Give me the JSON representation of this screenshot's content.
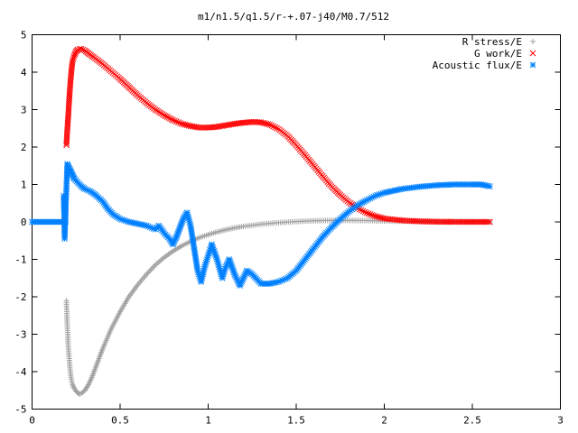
{
  "chart_data": {
    "type": "scatter",
    "title": "m1/n1.5/q1.5/r-+.07-j40/M0.7/512",
    "xlabel": "",
    "ylabel": "",
    "xlim": [
      0,
      3
    ],
    "ylim": [
      -5,
      5
    ],
    "xticks": [
      "0",
      "0.5",
      "1",
      "1.5",
      "2",
      "2.5",
      "3"
    ],
    "yticks": [
      "-5",
      "-4",
      "-3",
      "-2",
      "-1",
      "0",
      "1",
      "2",
      "3",
      "4",
      "5"
    ],
    "grid": false,
    "legend_position": "top-right",
    "series": [
      {
        "name": "R stress/E",
        "marker": "plus",
        "color": "#a0a0a0",
        "points": [
          [
            0.195,
            -2.1
          ],
          [
            0.198,
            -2.5
          ],
          [
            0.2,
            -2.8
          ],
          [
            0.203,
            -3.0
          ],
          [
            0.205,
            -3.3
          ],
          [
            0.21,
            -3.6
          ],
          [
            0.215,
            -3.9
          ],
          [
            0.22,
            -4.1
          ],
          [
            0.225,
            -4.25
          ],
          [
            0.23,
            -4.35
          ],
          [
            0.24,
            -4.45
          ],
          [
            0.25,
            -4.52
          ],
          [
            0.26,
            -4.57
          ],
          [
            0.27,
            -4.6
          ],
          [
            0.28,
            -4.58
          ],
          [
            0.3,
            -4.5
          ],
          [
            0.32,
            -4.35
          ],
          [
            0.34,
            -4.15
          ],
          [
            0.36,
            -3.9
          ],
          [
            0.38,
            -3.65
          ],
          [
            0.4,
            -3.4
          ],
          [
            0.45,
            -2.85
          ],
          [
            0.5,
            -2.4
          ],
          [
            0.55,
            -2.0
          ],
          [
            0.6,
            -1.68
          ],
          [
            0.65,
            -1.4
          ],
          [
            0.7,
            -1.15
          ],
          [
            0.75,
            -0.95
          ],
          [
            0.8,
            -0.78
          ],
          [
            0.85,
            -0.64
          ],
          [
            0.9,
            -0.52
          ],
          [
            0.95,
            -0.42
          ],
          [
            1.0,
            -0.34
          ],
          [
            1.05,
            -0.27
          ],
          [
            1.1,
            -0.21
          ],
          [
            1.15,
            -0.16
          ],
          [
            1.2,
            -0.12
          ],
          [
            1.3,
            -0.06
          ],
          [
            1.4,
            -0.02
          ],
          [
            1.5,
            0.01
          ],
          [
            1.6,
            0.03
          ],
          [
            1.7,
            0.04
          ],
          [
            1.8,
            0.04
          ],
          [
            1.9,
            0.035
          ],
          [
            2.0,
            0.025
          ],
          [
            2.1,
            0.018
          ],
          [
            2.2,
            0.012
          ],
          [
            2.3,
            0.008
          ],
          [
            2.4,
            0.005
          ],
          [
            2.5,
            0.003
          ],
          [
            2.6,
            0.002
          ]
        ]
      },
      {
        "name": "G work/E",
        "marker": "cross",
        "color": "#ff0000",
        "points": [
          [
            0.195,
            2.05
          ],
          [
            0.2,
            2.45
          ],
          [
            0.205,
            2.8
          ],
          [
            0.21,
            3.2
          ],
          [
            0.215,
            3.55
          ],
          [
            0.22,
            3.85
          ],
          [
            0.225,
            4.1
          ],
          [
            0.23,
            4.3
          ],
          [
            0.24,
            4.45
          ],
          [
            0.25,
            4.55
          ],
          [
            0.26,
            4.6
          ],
          [
            0.27,
            4.62
          ],
          [
            0.28,
            4.62
          ],
          [
            0.3,
            4.58
          ],
          [
            0.32,
            4.5
          ],
          [
            0.35,
            4.4
          ],
          [
            0.4,
            4.22
          ],
          [
            0.45,
            4.02
          ],
          [
            0.5,
            3.82
          ],
          [
            0.55,
            3.6
          ],
          [
            0.6,
            3.38
          ],
          [
            0.65,
            3.18
          ],
          [
            0.7,
            3.0
          ],
          [
            0.75,
            2.85
          ],
          [
            0.8,
            2.72
          ],
          [
            0.85,
            2.62
          ],
          [
            0.9,
            2.56
          ],
          [
            0.95,
            2.52
          ],
          [
            1.0,
            2.52
          ],
          [
            1.05,
            2.54
          ],
          [
            1.1,
            2.58
          ],
          [
            1.15,
            2.62
          ],
          [
            1.2,
            2.65
          ],
          [
            1.25,
            2.67
          ],
          [
            1.3,
            2.66
          ],
          [
            1.35,
            2.6
          ],
          [
            1.4,
            2.48
          ],
          [
            1.45,
            2.3
          ],
          [
            1.5,
            2.05
          ],
          [
            1.55,
            1.78
          ],
          [
            1.6,
            1.5
          ],
          [
            1.65,
            1.22
          ],
          [
            1.7,
            0.95
          ],
          [
            1.75,
            0.72
          ],
          [
            1.8,
            0.52
          ],
          [
            1.85,
            0.36
          ],
          [
            1.9,
            0.24
          ],
          [
            1.95,
            0.15
          ],
          [
            2.0,
            0.09
          ],
          [
            2.1,
            0.04
          ],
          [
            2.2,
            0.015
          ],
          [
            2.3,
            0.005
          ],
          [
            2.4,
            0.002
          ],
          [
            2.5,
            0.0
          ],
          [
            2.6,
            0.0
          ]
        ]
      },
      {
        "name": "Acoustic flux/E",
        "marker": "star",
        "color": "#0080ff",
        "points": [
          [
            0.0,
            0.0
          ],
          [
            0.05,
            0.0
          ],
          [
            0.1,
            0.0
          ],
          [
            0.15,
            0.0
          ],
          [
            0.19,
            0.0
          ],
          [
            0.18,
            0.7
          ],
          [
            0.185,
            -0.45
          ],
          [
            0.2,
            1.55
          ],
          [
            0.21,
            1.45
          ],
          [
            0.22,
            1.35
          ],
          [
            0.23,
            1.25
          ],
          [
            0.24,
            1.15
          ],
          [
            0.26,
            1.05
          ],
          [
            0.28,
            0.95
          ],
          [
            0.3,
            0.88
          ],
          [
            0.33,
            0.82
          ],
          [
            0.36,
            0.72
          ],
          [
            0.4,
            0.55
          ],
          [
            0.43,
            0.35
          ],
          [
            0.46,
            0.2
          ],
          [
            0.5,
            0.08
          ],
          [
            0.55,
            0.0
          ],
          [
            0.6,
            -0.05
          ],
          [
            0.65,
            -0.1
          ],
          [
            0.7,
            -0.2
          ],
          [
            0.72,
            -0.1
          ],
          [
            0.75,
            -0.3
          ],
          [
            0.78,
            -0.45
          ],
          [
            0.8,
            -0.6
          ],
          [
            0.82,
            -0.4
          ],
          [
            0.84,
            -0.15
          ],
          [
            0.86,
            0.1
          ],
          [
            0.88,
            0.25
          ],
          [
            0.9,
            -0.1
          ],
          [
            0.92,
            -0.7
          ],
          [
            0.94,
            -1.3
          ],
          [
            0.96,
            -1.6
          ],
          [
            0.98,
            -1.2
          ],
          [
            1.0,
            -0.9
          ],
          [
            1.02,
            -0.6
          ],
          [
            1.05,
            -1.0
          ],
          [
            1.08,
            -1.5
          ],
          [
            1.1,
            -1.2
          ],
          [
            1.12,
            -1.0
          ],
          [
            1.15,
            -1.4
          ],
          [
            1.18,
            -1.7
          ],
          [
            1.2,
            -1.5
          ],
          [
            1.22,
            -1.3
          ],
          [
            1.25,
            -1.4
          ],
          [
            1.28,
            -1.55
          ],
          [
            1.3,
            -1.65
          ],
          [
            1.35,
            -1.65
          ],
          [
            1.4,
            -1.6
          ],
          [
            1.45,
            -1.5
          ],
          [
            1.5,
            -1.3
          ],
          [
            1.55,
            -1.0
          ],
          [
            1.6,
            -0.7
          ],
          [
            1.65,
            -0.4
          ],
          [
            1.7,
            -0.15
          ],
          [
            1.75,
            0.08
          ],
          [
            1.8,
            0.28
          ],
          [
            1.85,
            0.45
          ],
          [
            1.9,
            0.58
          ],
          [
            1.95,
            0.7
          ],
          [
            2.0,
            0.78
          ],
          [
            2.1,
            0.88
          ],
          [
            2.2,
            0.94
          ],
          [
            2.3,
            0.98
          ],
          [
            2.4,
            1.0
          ],
          [
            2.5,
            1.0
          ],
          [
            2.55,
            1.0
          ],
          [
            2.6,
            0.95
          ]
        ]
      }
    ]
  }
}
